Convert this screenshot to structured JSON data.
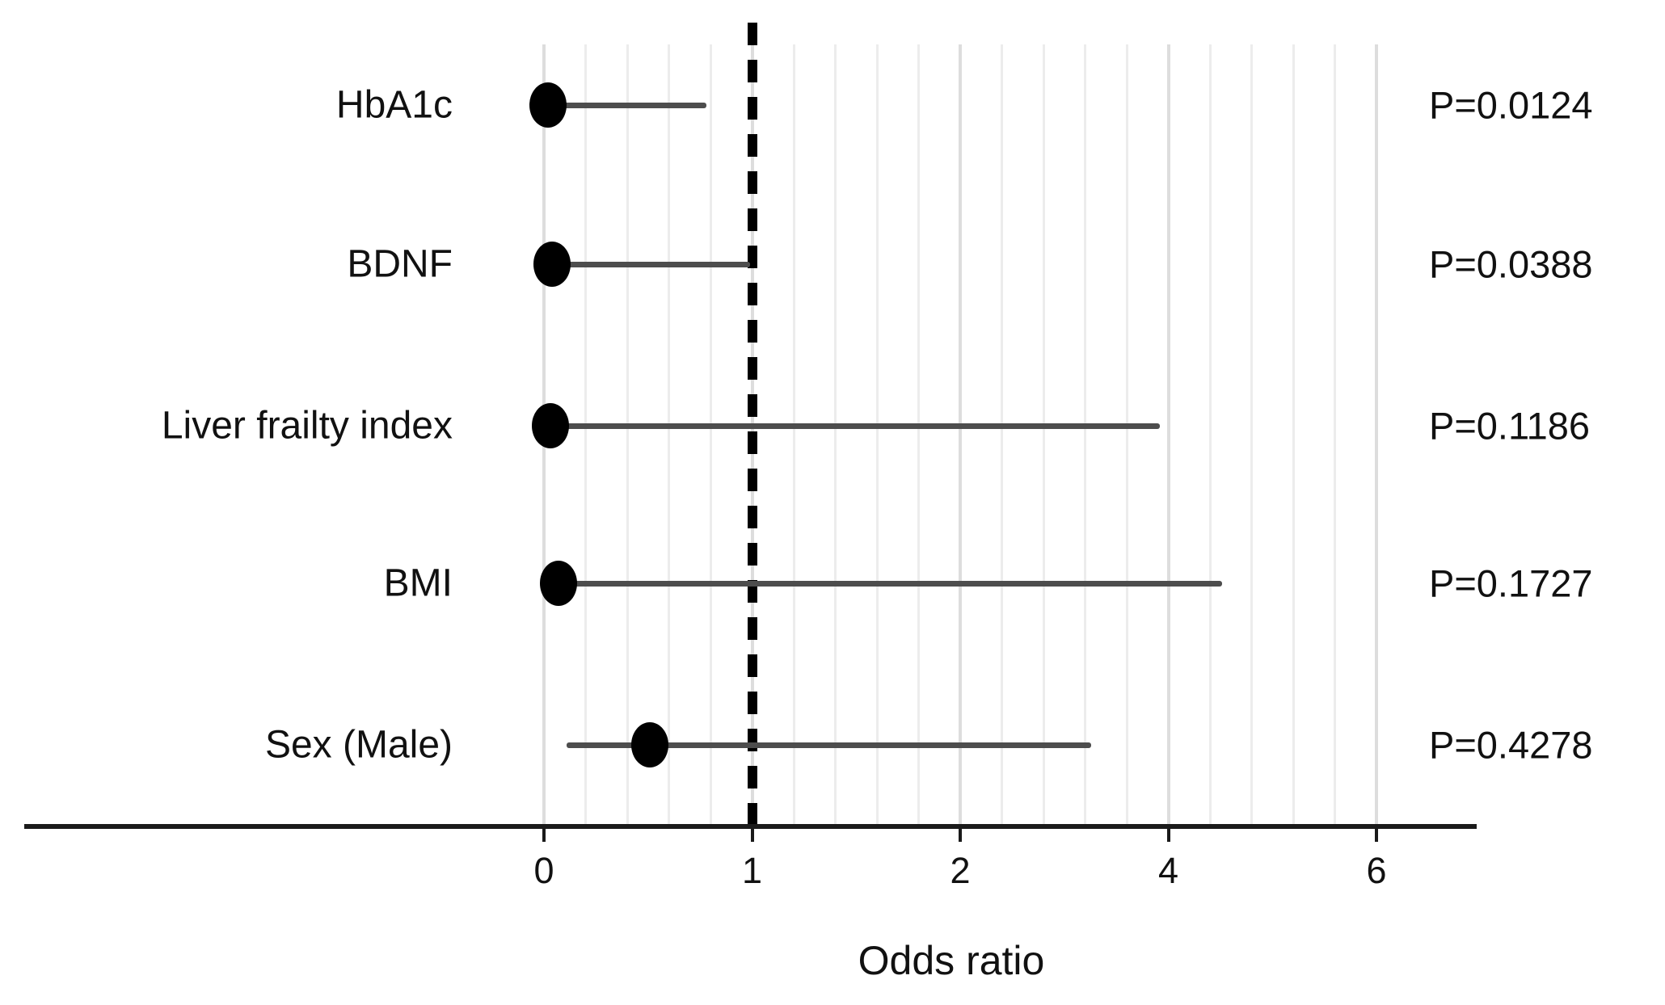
{
  "figure": {
    "background_color": "#ffffff",
    "text_color": "#111111"
  },
  "chart_data": {
    "type": "scatter",
    "variant": "forest-plot",
    "title": "",
    "xlabel": "Odds ratio",
    "ylabel": "",
    "x_ticks": [
      0,
      1,
      2,
      4,
      6
    ],
    "x_tick_labels": [
      "0",
      "1",
      "2",
      "4",
      "6"
    ],
    "reference_line_x": 1,
    "grid": "minor-vertical-on",
    "legend_position": "none",
    "categories": [
      "HbA1c",
      "BDNF",
      "Liver frailty index",
      "BMI",
      "Sex (Male)"
    ],
    "rows": [
      {
        "label": "HbA1c",
        "odds_ratio": 0.02,
        "ci_low": 0.02,
        "ci_high": 0.78,
        "p_label": "P=0.0124"
      },
      {
        "label": "BDNF",
        "odds_ratio": 0.04,
        "ci_low": 0.04,
        "ci_high": 0.99,
        "p_label": "P=0.0388"
      },
      {
        "label": "Liver frailty index",
        "odds_ratio": 0.03,
        "ci_low": 0.03,
        "ci_high": 3.92,
        "p_label": "P=0.1186"
      },
      {
        "label": "BMI",
        "odds_ratio": 0.07,
        "ci_low": 0.07,
        "ci_high": 4.52,
        "p_label": "P=0.1727"
      },
      {
        "label": "Sex (Male)",
        "odds_ratio": 0.51,
        "ci_low": 0.11,
        "ci_high": 3.26,
        "p_label": "P=0.4278"
      }
    ],
    "colors": {
      "marker": "#000000",
      "whisker": "#4d4d4d",
      "gridline_minor": "#ececec",
      "gridline_major": "#dddddd",
      "reference_line": "#000000",
      "axis": "#1a1a1a"
    }
  }
}
